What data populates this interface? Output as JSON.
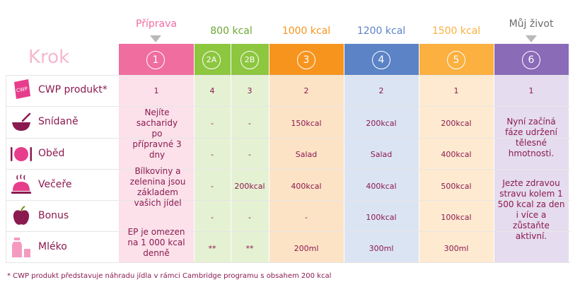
{
  "header": {
    "krok_label": "Krok",
    "phases": {
      "priprava": "Příprava",
      "kcal800": "800 kcal",
      "kcal1000": "1000 kcal",
      "kcal1200": "1200 kcal",
      "kcal1500": "1500 kcal",
      "muj_zivot": "Můj život"
    },
    "steps": [
      "1",
      "2A",
      "2B",
      "3",
      "4",
      "5",
      "6"
    ]
  },
  "rows": {
    "cwp": "CWP produkt*",
    "snidane": "Snídaně",
    "obed": "Oběd",
    "vecere": "Večeře",
    "bonus": "Bonus",
    "mleko": "Mléko"
  },
  "cwp_values": [
    "1",
    "4",
    "3",
    "2",
    "2",
    "1",
    "1"
  ],
  "col1_notes": {
    "note1": "Nejíte sacharidy po přípravné 3 dny",
    "note2": "Bílkoviny a zelenina jsou základem vašich jídel",
    "note3": "EP je omezen na 1 000 kcal denně"
  },
  "cells": {
    "snidane": [
      "-",
      "-",
      "150kcal",
      "200kcal",
      "200kcal"
    ],
    "obed": [
      "-",
      "-",
      "Salad",
      "Salad",
      "400kcal"
    ],
    "vecere": [
      "-",
      "200kcal",
      "400kcal",
      "400kcal",
      "500kcal"
    ],
    "bonus": [
      "-",
      "-",
      "-",
      "100kcal",
      "100kcal"
    ],
    "mleko": [
      "**",
      "**",
      "200ml",
      "300ml",
      "300ml"
    ]
  },
  "col6_notes": {
    "note1": "Nyní začíná fáze udržení tělesné hmotnosti.",
    "note2": "Jezte zdravou stravu kolem 1 500 kcal za den i více a zůstaňte aktivní."
  },
  "footnote": "* CWP produkt představuje náhradu jídla v rámci Cambridge programu s obsahem 200 kcal",
  "colors": {
    "pink": "#f06da0",
    "green": "#8dc63f",
    "orange": "#f7941d",
    "blue": "#5b83c6",
    "yellow": "#fbb040",
    "purple": "#8a6bb8",
    "text": "#8a1a50"
  }
}
